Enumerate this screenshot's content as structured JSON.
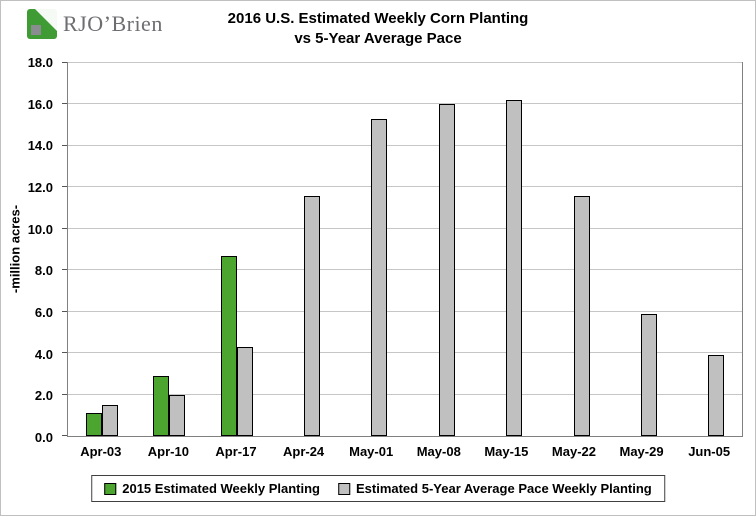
{
  "logo": {
    "text": "RJO’Brien"
  },
  "title": {
    "line1": "2016 U.S. Estimated Weekly Corn Planting",
    "line2": "vs 5-Year Average Pace"
  },
  "chart_data": {
    "type": "bar",
    "title": "2016 U.S. Estimated Weekly Corn Planting vs 5-Year Average Pace",
    "categories": [
      "Apr-03",
      "Apr-10",
      "Apr-17",
      "Apr-24",
      "May-01",
      "May-08",
      "May-15",
      "May-22",
      "May-29",
      "Jun-05"
    ],
    "series": [
      {
        "name": "2015 Estimated Weekly Planting",
        "color": "#4ca52f",
        "values": [
          1.1,
          2.9,
          8.7,
          null,
          null,
          null,
          null,
          null,
          null,
          null
        ]
      },
      {
        "name": "Estimated 5-Year Average Pace Weekly Planting",
        "color": "#c0c0c0",
        "values": [
          1.5,
          2.0,
          4.3,
          11.6,
          15.3,
          16.0,
          16.2,
          11.6,
          5.9,
          3.9
        ]
      }
    ],
    "xlabel": "",
    "ylabel": "-million acres-",
    "ylim": [
      0,
      18
    ],
    "ytick_step": 2,
    "ytick_format_decimals": 1,
    "grid": true,
    "legend_position": "bottom"
  }
}
